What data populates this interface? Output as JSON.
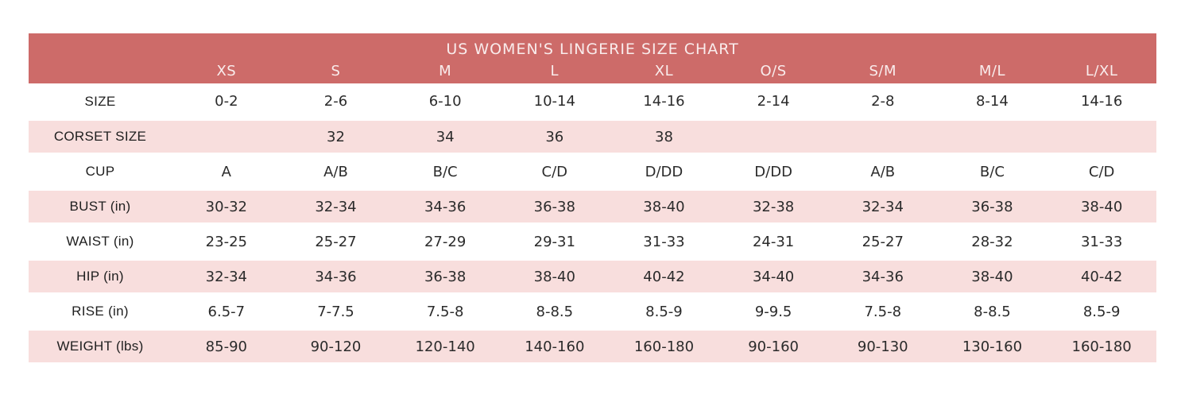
{
  "colors": {
    "header_background": "#cd6b69",
    "header_text": "#f9ecec",
    "row_pink": "#f8dedd",
    "row_white": "#ffffff",
    "cell_text": "#2b2b2b"
  },
  "chart_data": {
    "type": "table",
    "title": "US WOMEN'S LINGERIE SIZE CHART",
    "columns": [
      "",
      "XS",
      "S",
      "M",
      "L",
      "XL",
      "O/S",
      "S/M",
      "M/L",
      "L/XL"
    ],
    "rows": [
      {
        "label": "SIZE",
        "values": [
          "0-2",
          "2-6",
          "6-10",
          "10-14",
          "14-16",
          "2-14",
          "2-8",
          "8-14",
          "14-16"
        ]
      },
      {
        "label": "CORSET SIZE",
        "values": [
          "",
          "32",
          "34",
          "36",
          "38",
          "",
          "",
          "",
          ""
        ]
      },
      {
        "label": "CUP",
        "values": [
          "A",
          "A/B",
          "B/C",
          "C/D",
          "D/DD",
          "D/DD",
          "A/B",
          "B/C",
          "C/D"
        ]
      },
      {
        "label": "BUST (in)",
        "values": [
          "30-32",
          "32-34",
          "34-36",
          "36-38",
          "38-40",
          "32-38",
          "32-34",
          "36-38",
          "38-40"
        ]
      },
      {
        "label": "WAIST (in)",
        "values": [
          "23-25",
          "25-27",
          "27-29",
          "29-31",
          "31-33",
          "24-31",
          "25-27",
          "28-32",
          "31-33"
        ]
      },
      {
        "label": "HIP (in)",
        "values": [
          "32-34",
          "34-36",
          "36-38",
          "38-40",
          "40-42",
          "34-40",
          "34-36",
          "38-40",
          "40-42"
        ]
      },
      {
        "label": "RISE (in)",
        "values": [
          "6.5-7",
          "7-7.5",
          "7.5-8",
          "8-8.5",
          "8.5-9",
          "9-9.5",
          "7.5-8",
          "8-8.5",
          "8.5-9"
        ]
      },
      {
        "label": "WEIGHT (lbs)",
        "values": [
          "85-90",
          "90-120",
          "120-140",
          "140-160",
          "160-180",
          "90-160",
          "90-130",
          "130-160",
          "160-180"
        ]
      }
    ]
  }
}
